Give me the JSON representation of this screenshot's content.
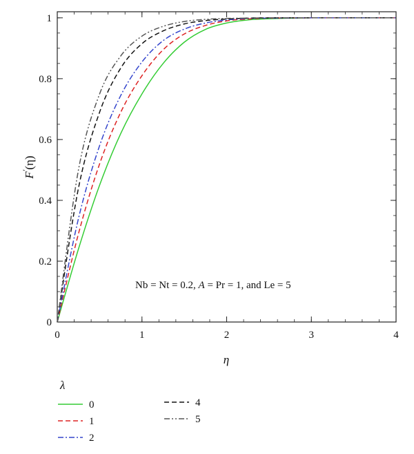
{
  "chart_data": {
    "type": "line",
    "xlabel": "η",
    "ylabel_main": "F",
    "ylabel_prime": "′",
    "ylabel_arg": "(η)",
    "xlim": [
      0,
      4
    ],
    "ylim": [
      0,
      1.02
    ],
    "x_ticks": [
      0,
      1,
      2,
      3,
      4
    ],
    "x_tick_labels": [
      "0",
      "1",
      "2",
      "3",
      "4"
    ],
    "y_ticks": [
      0,
      0.2,
      0.4,
      0.6,
      0.8,
      1
    ],
    "y_tick_labels": [
      "0",
      "0.2",
      "0.4",
      "0.6",
      "0.8",
      "1"
    ],
    "grid": false,
    "annotation": {
      "before": "Nb = Nt = 0.2, ",
      "A": "A",
      "middle": " = Pr = 1, and Le = 5"
    },
    "legend": {
      "title": "λ",
      "placement": "below"
    },
    "series": [
      {
        "name": "0",
        "color": "#33cc33",
        "dash": "",
        "x": [
          0,
          0.25,
          0.5,
          0.75,
          1.0,
          1.25,
          1.5,
          1.75,
          2.0,
          2.25,
          2.5,
          3.0,
          3.5,
          4.0
        ],
        "y": [
          0,
          0.24,
          0.45,
          0.62,
          0.75,
          0.85,
          0.92,
          0.962,
          0.983,
          0.993,
          0.997,
          1.0,
          1.0,
          1.0
        ]
      },
      {
        "name": "1",
        "color": "#dd2222",
        "dash": "7 4",
        "x": [
          0,
          0.25,
          0.5,
          0.75,
          1.0,
          1.25,
          1.5,
          1.75,
          2.0,
          2.25,
          2.5,
          3.0,
          3.5,
          4.0
        ],
        "y": [
          0,
          0.29,
          0.52,
          0.69,
          0.81,
          0.895,
          0.947,
          0.975,
          0.99,
          0.996,
          0.999,
          1.0,
          1.0,
          1.0
        ]
      },
      {
        "name": "2",
        "color": "#3344cc",
        "dash": "8 3 2 3",
        "x": [
          0,
          0.25,
          0.5,
          0.75,
          1.0,
          1.25,
          1.5,
          1.75,
          2.0,
          2.25,
          2.5,
          3.0,
          3.5,
          4.0
        ],
        "y": [
          0,
          0.34,
          0.58,
          0.745,
          0.855,
          0.925,
          0.963,
          0.983,
          0.993,
          0.998,
          0.999,
          1.0,
          1.0,
          1.0
        ]
      },
      {
        "name": "4",
        "color": "#111111",
        "dash": "7 4",
        "x": [
          0,
          0.25,
          0.5,
          0.75,
          1.0,
          1.25,
          1.5,
          1.75,
          2.0,
          2.25,
          2.5,
          3.0,
          3.5,
          4.0
        ],
        "y": [
          0,
          0.44,
          0.69,
          0.835,
          0.915,
          0.957,
          0.98,
          0.991,
          0.996,
          0.999,
          1.0,
          1.0,
          1.0,
          1.0
        ]
      },
      {
        "name": "5",
        "color": "#555555",
        "dash": "8 3 2 3 2 3",
        "x": [
          0,
          0.25,
          0.5,
          0.75,
          1.0,
          1.25,
          1.5,
          1.75,
          2.0,
          2.25,
          2.5,
          3.0,
          3.5,
          4.0
        ],
        "y": [
          0,
          0.5,
          0.75,
          0.875,
          0.94,
          0.972,
          0.988,
          0.995,
          0.998,
          0.999,
          1.0,
          1.0,
          1.0,
          1.0
        ]
      }
    ]
  }
}
